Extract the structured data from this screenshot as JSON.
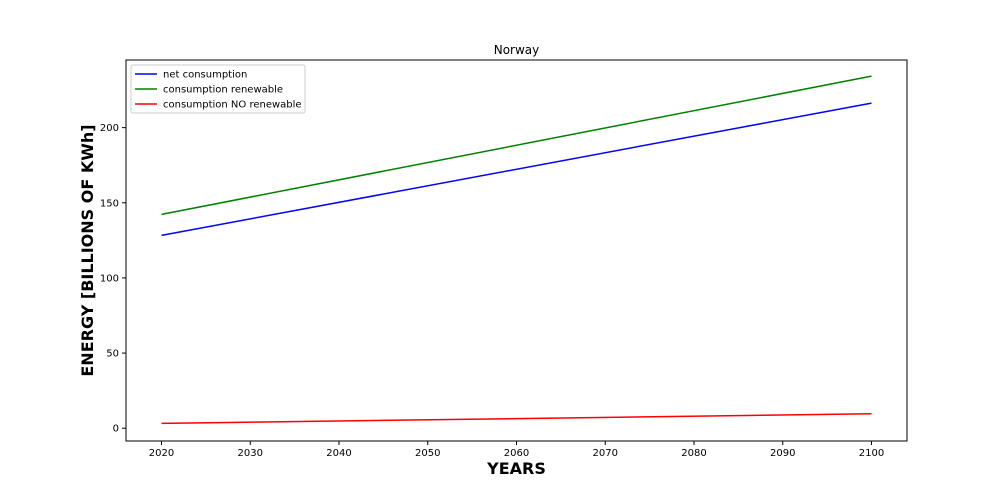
{
  "chart_data": {
    "type": "line",
    "title": "Norway",
    "xlabel": "YEARS",
    "ylabel": "ENERGY [BILLIONS OF KWh]",
    "x": [
      2020,
      2100
    ],
    "xlim": [
      2016,
      2104
    ],
    "ylim": [
      -8.5,
      245
    ],
    "xticks": [
      "2020",
      "2030",
      "2040",
      "2050",
      "2060",
      "2070",
      "2080",
      "2090",
      "2100"
    ],
    "yticks": [
      "0",
      "50",
      "100",
      "150",
      "200"
    ],
    "grid": false,
    "legend_position": "top-left",
    "series": [
      {
        "name": "net consumption",
        "color": "#0000ff",
        "values": [
          128.3,
          216.3
        ]
      },
      {
        "name": "consumption renewable",
        "color": "#008000",
        "values": [
          142.3,
          234.3
        ]
      },
      {
        "name": "consumption NO renewable",
        "color": "#ff0000",
        "values": [
          3.2,
          9.6
        ]
      }
    ]
  }
}
